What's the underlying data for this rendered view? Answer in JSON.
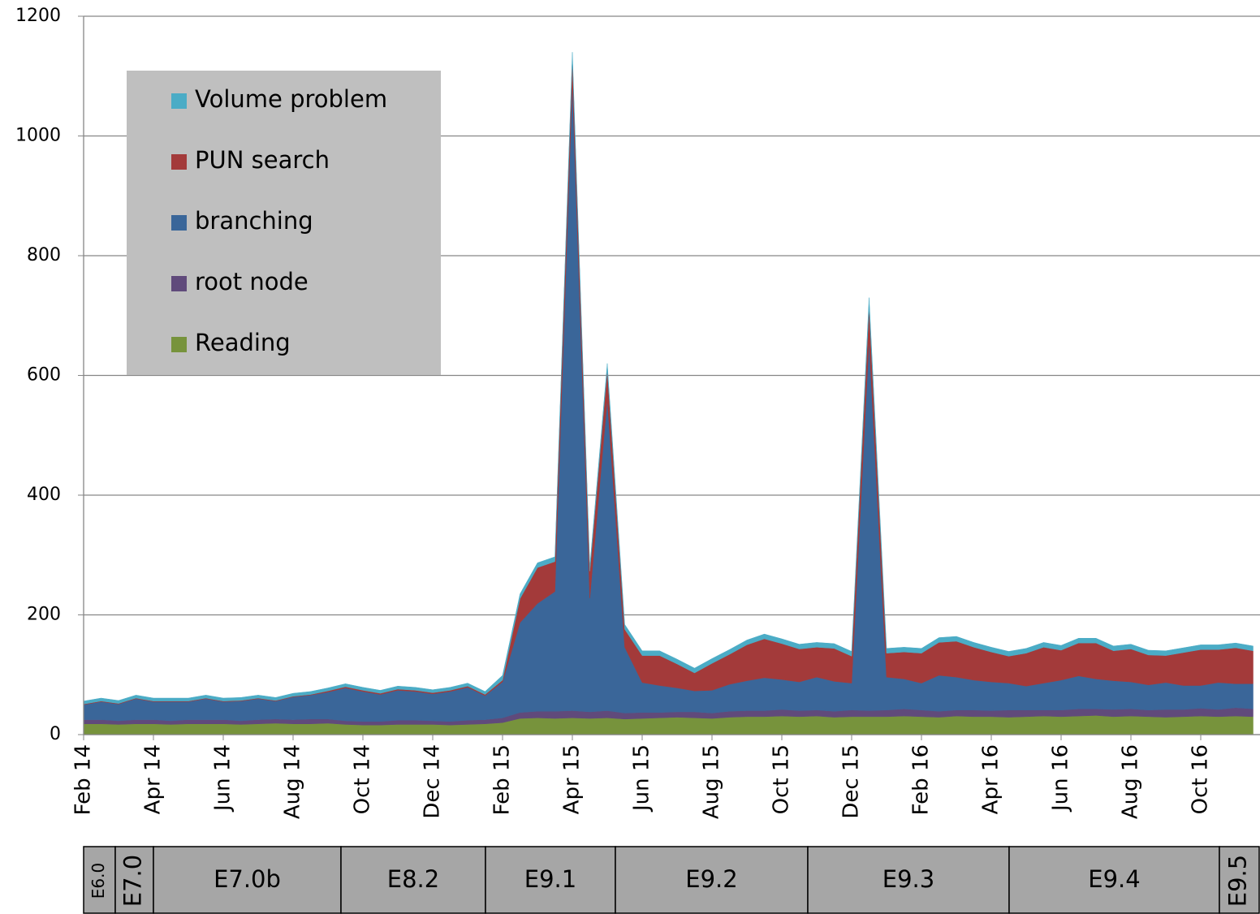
{
  "chart_data": {
    "type": "stacked_area",
    "categories": [
      "Feb 14",
      null,
      null,
      null,
      "Apr 14",
      null,
      null,
      null,
      "Jun 14",
      null,
      null,
      null,
      "Aug 14",
      null,
      null,
      null,
      "Oct 14",
      null,
      null,
      null,
      "Dec 14",
      null,
      null,
      null,
      "Feb 15",
      null,
      null,
      null,
      "Apr 15",
      null,
      null,
      null,
      "Jun 15",
      null,
      null,
      null,
      "Aug 15",
      null,
      null,
      null,
      "Oct 15",
      null,
      null,
      null,
      "Dec 15",
      null,
      null,
      null,
      "Feb 16",
      null,
      null,
      null,
      "Apr 16",
      null,
      null,
      null,
      "Jun 16",
      null,
      null,
      null,
      "Aug 16",
      null,
      null,
      null,
      "Oct 16",
      null,
      null,
      null
    ],
    "series": [
      {
        "name": "Reading",
        "color": "#77933c",
        "values": [
          18,
          18,
          17,
          18,
          18,
          17,
          18,
          18,
          18,
          17,
          18,
          19,
          18,
          18,
          19,
          17,
          16,
          16,
          17,
          17,
          17,
          16,
          17,
          18,
          20,
          27,
          28,
          27,
          28,
          27,
          28,
          26,
          27,
          28,
          29,
          28,
          27,
          29,
          30,
          30,
          31,
          30,
          31,
          29,
          30,
          30,
          30,
          31,
          30,
          29,
          31,
          30,
          30,
          29,
          30,
          31,
          30,
          31,
          32,
          30,
          31,
          30,
          29,
          30,
          31,
          30,
          31,
          30
        ]
      },
      {
        "name": "root node",
        "color": "#604a7b",
        "values": [
          7,
          7,
          6,
          7,
          7,
          6,
          7,
          7,
          7,
          6,
          7,
          7,
          7,
          8,
          7,
          6,
          6,
          6,
          7,
          7,
          6,
          6,
          7,
          7,
          8,
          10,
          11,
          12,
          12,
          11,
          12,
          10,
          10,
          9,
          9,
          10,
          9,
          10,
          10,
          10,
          11,
          10,
          10,
          10,
          11,
          10,
          11,
          12,
          11,
          10,
          10,
          11,
          10,
          12,
          11,
          10,
          11,
          12,
          11,
          12,
          12,
          11,
          13,
          12,
          13,
          12,
          14,
          13
        ]
      },
      {
        "name": "branching",
        "color": "#3a6699",
        "values": [
          25,
          30,
          28,
          35,
          30,
          32,
          30,
          35,
          30,
          33,
          35,
          30,
          38,
          40,
          45,
          55,
          50,
          45,
          50,
          48,
          45,
          50,
          55,
          40,
          60,
          150,
          180,
          200,
          1050,
          190,
          520,
          110,
          50,
          45,
          40,
          35,
          38,
          45,
          50,
          55,
          50,
          48,
          55,
          50,
          45,
          620,
          55,
          50,
          45,
          60,
          55,
          50,
          48,
          45,
          40,
          45,
          50,
          55,
          50,
          48,
          45,
          42,
          45,
          40,
          38,
          45,
          40,
          42
        ]
      },
      {
        "name": "PUN search",
        "color": "#a33a3a",
        "values": [
          1,
          1,
          1,
          1,
          1,
          1,
          1,
          1,
          1,
          1,
          1,
          1,
          1,
          1,
          2,
          2,
          2,
          2,
          2,
          2,
          2,
          2,
          2,
          2,
          3,
          40,
          60,
          50,
          40,
          45,
          50,
          30,
          45,
          50,
          40,
          30,
          45,
          50,
          60,
          65,
          60,
          55,
          50,
          55,
          45,
          55,
          40,
          45,
          50,
          55,
          60,
          55,
          50,
          45,
          55,
          60,
          50,
          55,
          60,
          50,
          55,
          50,
          45,
          55,
          60,
          55,
          60,
          55
        ]
      },
      {
        "name": "Volume problem",
        "color": "#4bacc6",
        "values": [
          5,
          5,
          5,
          5,
          5,
          5,
          5,
          5,
          5,
          5,
          5,
          5,
          5,
          5,
          5,
          5,
          5,
          5,
          5,
          5,
          5,
          5,
          5,
          5,
          8,
          8,
          8,
          8,
          10,
          8,
          10,
          8,
          8,
          8,
          8,
          8,
          8,
          8,
          8,
          8,
          8,
          8,
          8,
          8,
          8,
          15,
          8,
          8,
          8,
          8,
          8,
          8,
          8,
          8,
          8,
          8,
          8,
          8,
          8,
          8,
          8,
          8,
          8,
          8,
          8,
          8,
          8,
          8
        ]
      }
    ],
    "ylim": [
      0,
      1200
    ],
    "yticks": [
      0,
      200,
      400,
      600,
      800,
      1000,
      1200
    ],
    "grid": true,
    "legend": "top-left",
    "versions": [
      "E6.0",
      "E7.0",
      "E7.0b",
      "E8.2",
      "E9.1",
      "E9.2",
      "E9.3",
      "E9.4",
      "E9.5"
    ]
  }
}
